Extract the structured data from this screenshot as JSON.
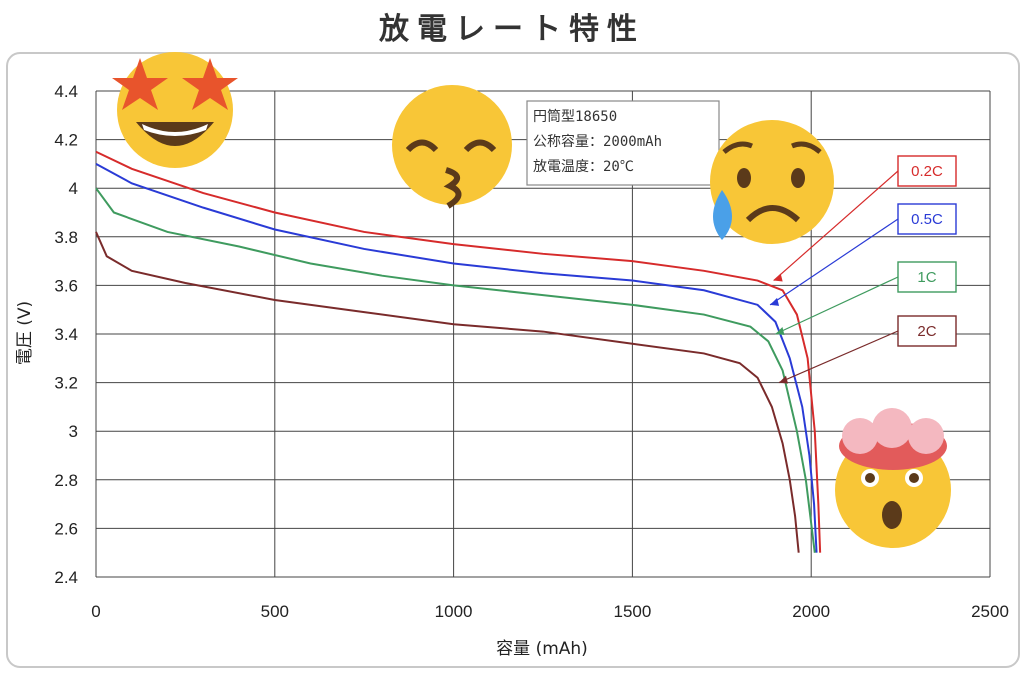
{
  "chart_data": {
    "type": "line",
    "title": "放電レート特性",
    "xlabel": "容量 (mAh)",
    "ylabel": "電圧 (V)",
    "xlim": [
      0,
      2500
    ],
    "ylim": [
      2.4,
      4.4
    ],
    "xticks": [
      "0",
      "500",
      "1000",
      "1500",
      "2000",
      "2500"
    ],
    "yticks": [
      "2.4",
      "2.6",
      "2.8",
      "3",
      "3.2",
      "3.4",
      "3.6",
      "3.8",
      "4",
      "4.2",
      "4.4"
    ],
    "grid": true,
    "annotation": [
      "円筒型18650",
      "公称容量：2000mAh",
      "放電温度：20℃"
    ],
    "series": [
      {
        "name": "0.2C",
        "color": "#d62b2b",
        "x": [
          0,
          100,
          300,
          500,
          750,
          1000,
          1250,
          1500,
          1700,
          1850,
          1920,
          1960,
          1990,
          2010,
          2020,
          2025
        ],
        "y": [
          4.15,
          4.08,
          3.98,
          3.9,
          3.82,
          3.77,
          3.73,
          3.7,
          3.66,
          3.62,
          3.58,
          3.48,
          3.3,
          3.0,
          2.7,
          2.5
        ]
      },
      {
        "name": "0.5C",
        "color": "#2a3bd6",
        "x": [
          0,
          100,
          300,
          500,
          750,
          1000,
          1250,
          1500,
          1700,
          1850,
          1900,
          1940,
          1975,
          1995,
          2008,
          2015
        ],
        "y": [
          4.1,
          4.02,
          3.92,
          3.83,
          3.75,
          3.69,
          3.65,
          3.62,
          3.58,
          3.52,
          3.45,
          3.3,
          3.1,
          2.9,
          2.7,
          2.5
        ]
      },
      {
        "name": "1C",
        "color": "#3f9b5f",
        "x": [
          0,
          50,
          200,
          400,
          600,
          800,
          1000,
          1250,
          1500,
          1700,
          1830,
          1880,
          1920,
          1960,
          1985,
          2000,
          2010
        ],
        "y": [
          4.0,
          3.9,
          3.82,
          3.76,
          3.69,
          3.64,
          3.6,
          3.56,
          3.52,
          3.48,
          3.43,
          3.37,
          3.25,
          3.0,
          2.8,
          2.62,
          2.5
        ]
      },
      {
        "name": "2C",
        "color": "#7a2b2b",
        "x": [
          0,
          30,
          100,
          250,
          500,
          750,
          1000,
          1250,
          1500,
          1700,
          1800,
          1850,
          1890,
          1920,
          1940,
          1955,
          1965
        ],
        "y": [
          3.82,
          3.72,
          3.66,
          3.61,
          3.54,
          3.49,
          3.44,
          3.41,
          3.36,
          3.32,
          3.28,
          3.22,
          3.1,
          2.95,
          2.8,
          2.65,
          2.5
        ]
      }
    ]
  }
}
